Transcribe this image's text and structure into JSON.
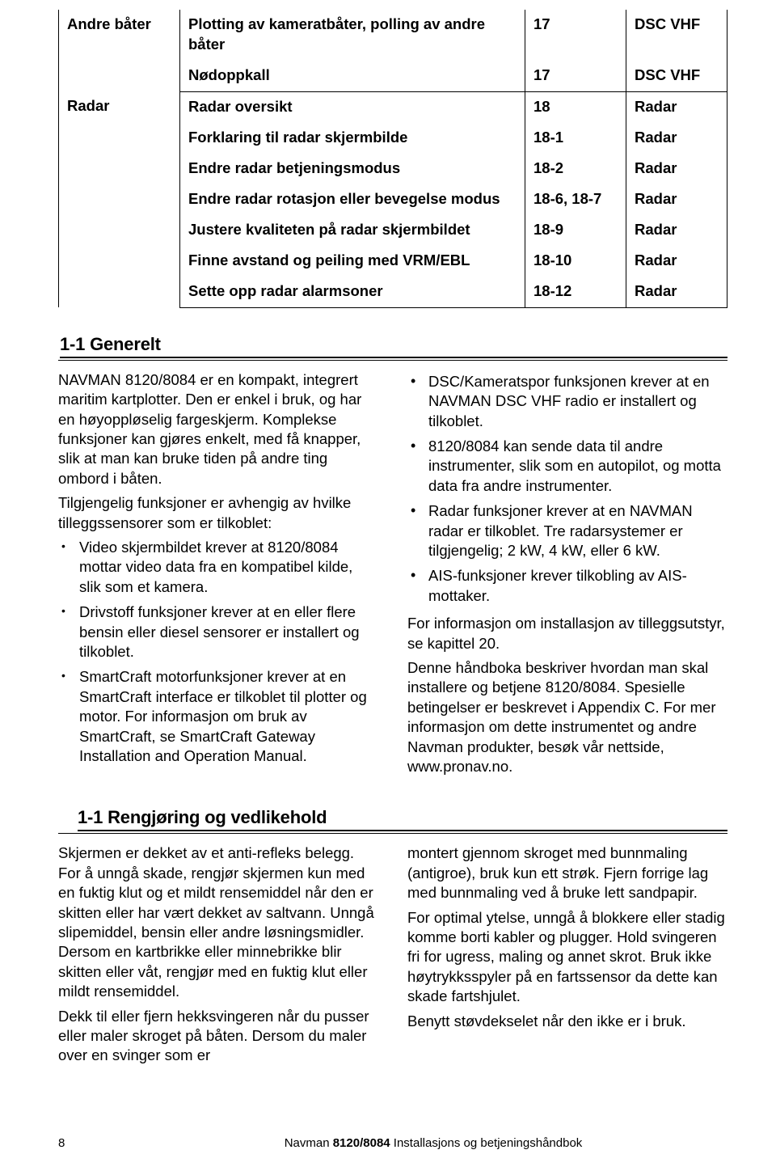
{
  "table": {
    "groups": [
      {
        "category": "Andre båter",
        "rows": [
          {
            "desc": "Plotting av kameratbåter, polling av andre båter",
            "ref": "17",
            "src": "DSC VHF"
          },
          {
            "desc": "Nødoppkall",
            "ref": "17",
            "src": "DSC VHF"
          }
        ]
      },
      {
        "category": "Radar",
        "rows": [
          {
            "desc": "Radar oversikt",
            "ref": "18",
            "src": "Radar"
          },
          {
            "desc": "Forklaring til radar skjermbilde",
            "ref": "18-1",
            "src": "Radar"
          },
          {
            "desc": "Endre radar betjeningsmodus",
            "ref": "18-2",
            "src": "Radar"
          },
          {
            "desc": "Endre radar rotasjon eller bevegelse modus",
            "ref": "18-6, 18-7",
            "src": "Radar"
          },
          {
            "desc": "Justere kvaliteten på radar skjermbildet",
            "ref": "18-9",
            "src": "Radar"
          },
          {
            "desc": "Finne avstand og peiling med VRM/EBL",
            "ref": "18-10",
            "src": "Radar"
          },
          {
            "desc": "Sette opp radar alarmsoner",
            "ref": "18-12",
            "src": "Radar"
          }
        ]
      }
    ]
  },
  "section1": {
    "heading": "1-1 Generelt",
    "left": {
      "intro": "NAVMAN 8120/8084 er en kompakt, integrert maritim kartplotter. Den er enkel i bruk, og har en høyoppløselig fargeskjerm. Komplekse funksjoner kan gjøres enkelt, med få knapper, slik at man kan bruke tiden på andre ting ombord i båten.",
      "lead": "Tilgjengelig funksjoner er avhengig av hvilke tilleggssensorer som er tilkoblet:",
      "bullets": [
        "Video skjermbildet krever at 8120/8084 mottar video data fra en kompatibel kilde, slik som et kamera.",
        "Drivstoff funksjoner krever at en eller flere bensin eller diesel sensorer er installert og tilkoblet.",
        "SmartCraft motorfunksjoner krever at en SmartCraft interface er tilkoblet til plotter og motor. For informasjon om bruk av SmartCraft, se SmartCraft Gateway Installation and Operation Manual."
      ]
    },
    "right": {
      "bullets": [
        "DSC/Kameratspor funksjonen krever at en NAVMAN DSC VHF radio er installert og tilkoblet.",
        "8120/8084 kan sende data til andre instrumenter, slik som en autopilot, og motta data fra andre instrumenter.",
        "Radar funksjoner krever at en NAVMAN radar er tilkoblet. Tre radarsystemer er tilgjengelig; 2 kW, 4 kW, eller 6 kW.",
        "AIS-funksjoner krever tilkobling av AIS-mottaker."
      ],
      "followon": [
        "For informasjon om installasjon av tilleggsutstyr, se kapittel 20.",
        "Denne håndboka beskriver hvordan man skal installere og betjene 8120/8084. Spesielle betingelser er beskrevet i  Appendix C. For mer informasjon om dette instrumentet og andre Navman produkter, besøk vår nettside, www.pronav.no."
      ]
    }
  },
  "section2": {
    "heading": "1-1 Rengjøring og vedlikehold",
    "left": [
      "Skjermen er dekket av et anti-refleks belegg. For å unngå skade, rengjør skjermen kun med en fuktig klut og et mildt rensemiddel når den er skitten eller har vært dekket av saltvann. Unngå slipemiddel, bensin eller andre løsningsmidler.  Dersom en kartbrikke eller minnebrikke blir skitten eller våt, rengjør med en fuktig klut eller mildt rensemiddel.",
      "Dekk til eller fjern hekksvingeren når du pusser eller maler skroget på båten. Dersom du maler over en svinger som er"
    ],
    "right": [
      "montert gjennom skroget med bunnmaling (antigroe), bruk kun ett strøk.  Fjern forrige lag med bunnmaling ved å bruke lett sandpapir.",
      "For optimal ytelse, unngå å blokkere eller stadig komme borti kabler og plugger.  Hold svingeren fri for ugress, maling og annet skrot.  Bruk ikke høytrykksspyler på en fartssensor da dette kan skade fartshjulet.",
      "Benytt støvdekselet når den ikke er i bruk."
    ]
  },
  "footer": {
    "page": "8",
    "brand": "Navman",
    "model": "8120/8084",
    "tail": "Installasjons og betjeningshåndbok"
  }
}
